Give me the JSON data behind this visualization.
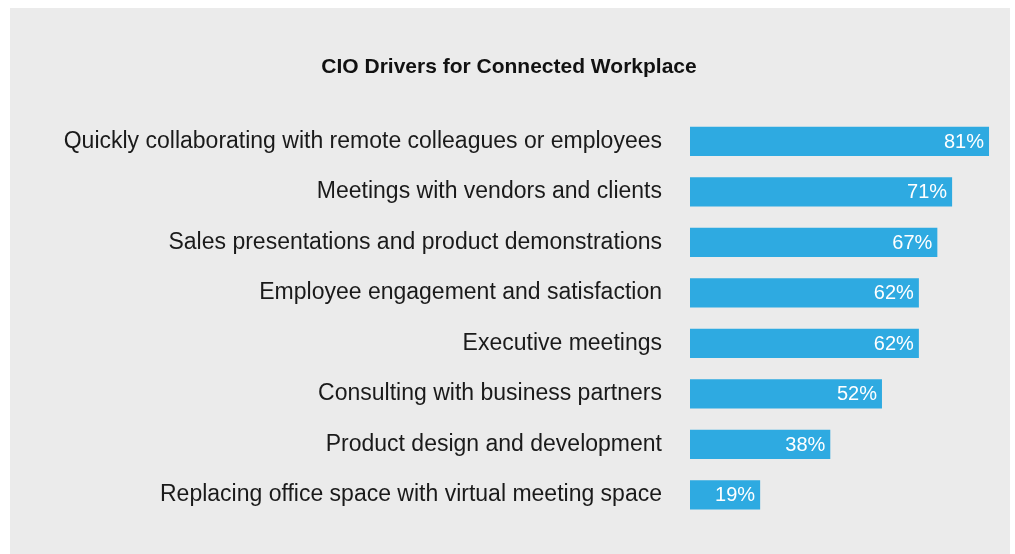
{
  "chart_data": {
    "type": "bar",
    "orientation": "horizontal",
    "title": "CIO Drivers for Connected Workplace",
    "categories": [
      "Quickly collaborating with remote colleagues or employees",
      "Meetings with vendors and clients",
      "Sales presentations and product demonstrations",
      "Employee engagement and satisfaction",
      "Executive meetings",
      "Consulting with business partners",
      "Product design and development",
      "Replacing office space with virtual meeting space"
    ],
    "values": [
      81,
      71,
      67,
      62,
      62,
      52,
      38,
      19
    ],
    "value_labels": [
      "81%",
      "71%",
      "67%",
      "62%",
      "62%",
      "52%",
      "38%",
      "19%"
    ],
    "color": "#2eaae1",
    "legend": false
  }
}
